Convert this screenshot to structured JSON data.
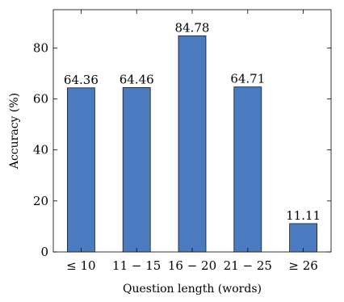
{
  "chart_data": {
    "type": "bar",
    "categories": [
      "≤ 10",
      "11 − 15",
      "16 − 20",
      "21 − 25",
      "≥ 26"
    ],
    "values": [
      64.36,
      64.46,
      84.78,
      64.71,
      11.11
    ],
    "data_labels": [
      "64.36",
      "64.46",
      "84.78",
      "64.71",
      "11.11"
    ],
    "xlabel": "Question length (words)",
    "ylabel": "Accuracy (%)",
    "ylim": [
      0,
      95
    ],
    "yticks": [
      0,
      20,
      40,
      60,
      80
    ],
    "grid": false,
    "bar_color": "#4a7ac0",
    "bar_edge_color": "#1a1a1a"
  }
}
